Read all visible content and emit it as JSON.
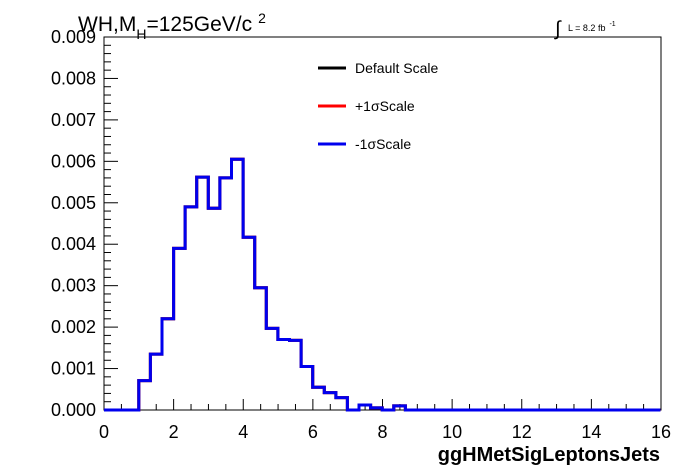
{
  "chart_data": {
    "type": "line",
    "title_main": "WH,M",
    "title_sub": "H",
    "title_rest": "=125GeV/c",
    "title_sup": "2",
    "lumi_label": "L = 8.2 fb",
    "lumi_sup": "-1",
    "xlabel": "ggHMetSigLeptonsJets",
    "ylabel": "",
    "xlim": [
      0,
      16
    ],
    "ylim": [
      0,
      0.009
    ],
    "x_ticks": [
      "0",
      "2",
      "4",
      "6",
      "8",
      "10",
      "12",
      "14",
      "16"
    ],
    "y_ticks": [
      "0.000",
      "0.001",
      "0.002",
      "0.003",
      "0.004",
      "0.005",
      "0.006",
      "0.007",
      "0.008",
      "0.009"
    ],
    "bin_width": 0.333,
    "legend_position": "top-right",
    "grid": false,
    "series": [
      {
        "name": "Default Scale",
        "color": "#000000",
        "values": [
          0,
          0,
          0,
          0.00071,
          0.00135,
          0.0022,
          0.0039,
          0.0049,
          0.00562,
          0.00487,
          0.0056,
          0.00605,
          0.00417,
          0.00295,
          0.00197,
          0.0017,
          0.00168,
          0.00105,
          0.00055,
          0.00042,
          0.0003,
          0,
          0.00012,
          5e-05,
          0,
          0.0001,
          0,
          0,
          0,
          0,
          0,
          0,
          0,
          0,
          0,
          0,
          0,
          0,
          0,
          0,
          0,
          0,
          0,
          0,
          0,
          0,
          0,
          0
        ]
      },
      {
        "name": "+1σScale",
        "color": "#ff0000",
        "values": [
          0,
          0,
          0,
          0.00071,
          0.00135,
          0.0022,
          0.0039,
          0.0049,
          0.00562,
          0.00487,
          0.0056,
          0.00605,
          0.00417,
          0.00295,
          0.00197,
          0.0017,
          0.00168,
          0.00105,
          0.00055,
          0.00042,
          0.0003,
          0,
          0.00012,
          5e-05,
          0,
          0.0001,
          0,
          0,
          0,
          0,
          0,
          0,
          0,
          0,
          0,
          0,
          0,
          0,
          0,
          0,
          0,
          0,
          0,
          0,
          0,
          0,
          0,
          0
        ]
      },
      {
        "name": "-1σScale",
        "color": "#0000ee",
        "values": [
          0,
          0,
          0,
          0.00071,
          0.00135,
          0.0022,
          0.0039,
          0.0049,
          0.00562,
          0.00487,
          0.0056,
          0.00605,
          0.00417,
          0.00295,
          0.00197,
          0.0017,
          0.00168,
          0.00105,
          0.00055,
          0.00042,
          0.0003,
          0,
          0.00012,
          5e-05,
          0,
          0.0001,
          0,
          0,
          0,
          0,
          0,
          0,
          0,
          0,
          0,
          0,
          0,
          0,
          0,
          0,
          0,
          0,
          0,
          0,
          0,
          0,
          0,
          0
        ]
      }
    ]
  }
}
